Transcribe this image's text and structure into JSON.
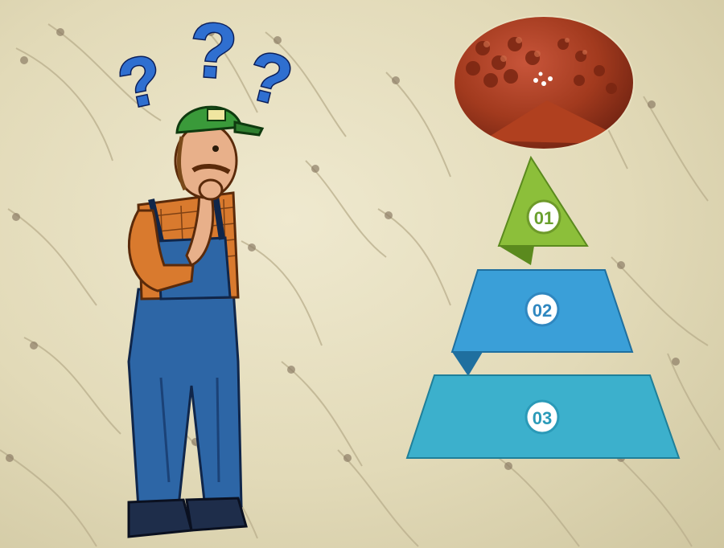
{
  "infographic": {
    "steps": [
      {
        "number": "01",
        "color": "#8cbf3a"
      },
      {
        "number": "02",
        "color": "#3a9fd8"
      },
      {
        "number": "03",
        "color": "#3cb0cc"
      }
    ]
  },
  "decor": {
    "question_marks": [
      "?",
      "?",
      "?"
    ],
    "question_mark_color": "#2f6fd0",
    "feed_colors": [
      "#8a2e18",
      "#b0401f",
      "#c8553a"
    ],
    "figure_icon": "confused-farmer-illustration",
    "background_icon": "shrimp-larvae-background"
  }
}
